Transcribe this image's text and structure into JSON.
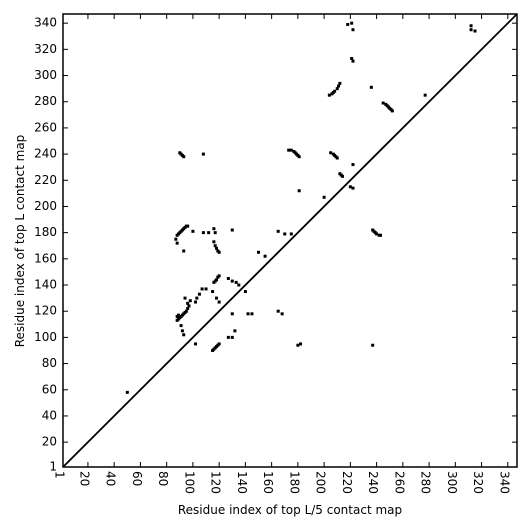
{
  "chart_data": {
    "type": "scatter",
    "x_label": "Residue index of top L/5 contact map",
    "y_label": "Residue index of top L contact map",
    "xlim": [
      1,
      347
    ],
    "ylim": [
      1,
      347
    ],
    "xticks": [
      1,
      20,
      40,
      60,
      80,
      100,
      120,
      140,
      160,
      180,
      200,
      220,
      240,
      260,
      280,
      300,
      320,
      340
    ],
    "yticks": [
      1,
      20,
      40,
      60,
      80,
      100,
      120,
      140,
      160,
      180,
      200,
      220,
      240,
      260,
      280,
      300,
      320,
      340
    ],
    "series": [
      {
        "type": "scatter",
        "color": "#000000",
        "x": [
          90,
          91,
          92,
          93,
          108,
          50,
          88,
          89,
          90,
          91,
          92,
          93,
          94,
          95,
          96,
          87,
          88,
          93,
          100,
          108,
          112,
          117,
          116,
          130,
          116,
          117,
          118,
          119,
          120,
          165,
          170,
          175,
          150,
          155,
          88,
          89,
          90,
          91,
          92,
          93,
          94,
          95,
          96,
          97,
          89,
          88,
          91,
          92,
          93,
          94,
          96,
          98,
          103,
          105,
          107,
          110,
          102,
          117,
          118,
          119,
          120,
          116,
          115,
          118,
          120,
          127,
          130,
          133,
          135,
          140,
          142,
          145,
          130,
          132,
          127,
          130,
          115,
          116,
          117,
          118,
          119,
          120,
          165,
          168,
          180,
          182,
          102,
          173,
          175,
          177,
          178,
          179,
          180,
          181,
          181,
          200,
          205,
          207,
          208,
          209,
          210,
          212,
          213,
          214,
          220,
          222,
          222,
          204,
          206,
          207,
          208,
          210,
          211,
          212,
          218,
          221,
          222,
          221,
          222,
          236,
          245,
          247,
          248,
          249,
          250,
          251,
          252,
          237,
          238,
          239,
          240,
          242,
          243,
          237,
          277,
          312,
          312,
          315
        ],
        "y": [
          241,
          240,
          239,
          238,
          240,
          58,
          178,
          179,
          180,
          181,
          182,
          183,
          184,
          185,
          185,
          175,
          172,
          166,
          181,
          180,
          180,
          180,
          183,
          182,
          173,
          170,
          168,
          166,
          165,
          181,
          179,
          179,
          165,
          162,
          113,
          114,
          115,
          116,
          117,
          118,
          119,
          120,
          122,
          124,
          117,
          116,
          109,
          105,
          102,
          130,
          126,
          128,
          130,
          133,
          137,
          137,
          127,
          143,
          144,
          146,
          147,
          142,
          135,
          130,
          127,
          145,
          143,
          142,
          140,
          135,
          118,
          118,
          118,
          105,
          100,
          100,
          90,
          91,
          92,
          93,
          94,
          95,
          120,
          118,
          94,
          95,
          95,
          243,
          243,
          242,
          241,
          240,
          239,
          238,
          212,
          207,
          241,
          240,
          239,
          238,
          237,
          225,
          224,
          223,
          215,
          214,
          232,
          285,
          286,
          287,
          288,
          290,
          292,
          294,
          339,
          340,
          335,
          313,
          311,
          291,
          279,
          278,
          277,
          276,
          275,
          274,
          273,
          182,
          181,
          180,
          179,
          178,
          178,
          94,
          285,
          338,
          335,
          334
        ]
      },
      {
        "type": "line",
        "color": "#000000",
        "x": [
          1,
          347
        ],
        "y": [
          1,
          347
        ]
      }
    ]
  }
}
